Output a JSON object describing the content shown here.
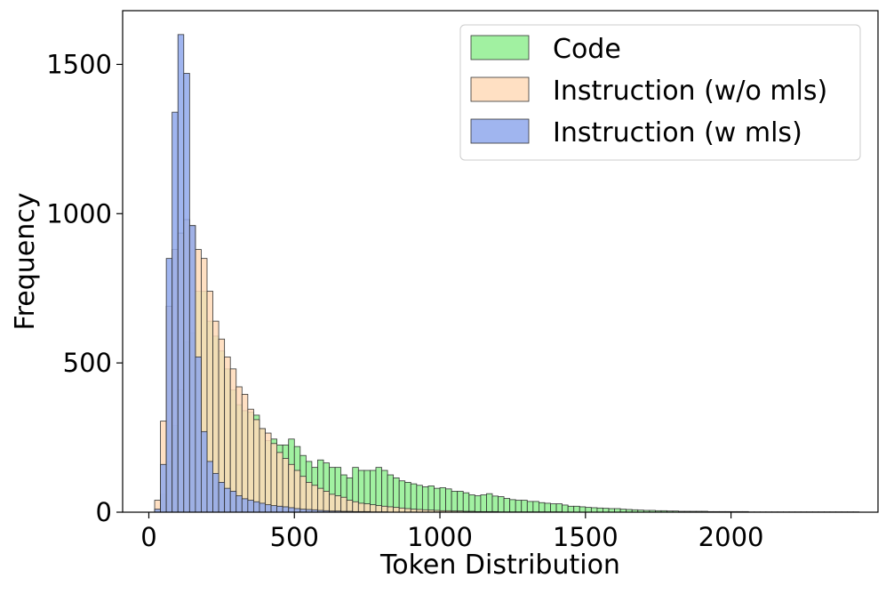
{
  "chart_data": {
    "type": "bar",
    "subtype": "histogram-overlay",
    "title": "",
    "xlabel": "Token Distribution",
    "ylabel": "Frequency",
    "xlim": [
      -90,
      2505
    ],
    "ylim": [
      0,
      1680
    ],
    "bin_width": 20,
    "x_ticks": [
      0,
      500,
      1000,
      1500,
      2000
    ],
    "y_ticks": [
      0,
      500,
      1000,
      1500
    ],
    "grid": false,
    "legend_position": "top-right",
    "series": [
      {
        "name": "Code",
        "color": "#90ee90",
        "edge_color": "#333333",
        "x_start": 20,
        "values": [
          8,
          60,
          170,
          290,
          410,
          570,
          600,
          740,
          740,
          640,
          590,
          540,
          480,
          410,
          360,
          340,
          335,
          325,
          280,
          240,
          245,
          225,
          225,
          245,
          220,
          190,
          170,
          150,
          175,
          165,
          150,
          150,
          125,
          115,
          150,
          140,
          140,
          140,
          150,
          140,
          125,
          115,
          105,
          100,
          95,
          90,
          85,
          88,
          80,
          82,
          78,
          70,
          70,
          65,
          58,
          55,
          58,
          62,
          54,
          52,
          46,
          42,
          40,
          40,
          36,
          36,
          32,
          30,
          28,
          28,
          24,
          20,
          20,
          18,
          16,
          15,
          14,
          13,
          12,
          12,
          10,
          9,
          8,
          7,
          6,
          6,
          5,
          5,
          4,
          4,
          3,
          3,
          3,
          3,
          3,
          2,
          2,
          2,
          2,
          2,
          2,
          2,
          1,
          1,
          1,
          1,
          1,
          1,
          1,
          1,
          1,
          1,
          1,
          1,
          1,
          1,
          1,
          1,
          1,
          1,
          1
        ]
      },
      {
        "name": "Instruction (w/o mls)",
        "color": "#ffdab9",
        "edge_color": "#333333",
        "x_start": 20,
        "values": [
          40,
          305,
          690,
          880,
          935,
          980,
          960,
          880,
          850,
          740,
          640,
          580,
          520,
          480,
          420,
          395,
          345,
          310,
          280,
          265,
          230,
          200,
          180,
          160,
          140,
          120,
          100,
          90,
          80,
          70,
          60,
          55,
          50,
          40,
          35,
          30,
          28,
          25,
          22,
          20,
          18,
          16,
          14,
          12,
          10,
          9,
          8,
          7,
          6,
          5,
          5,
          4,
          4,
          3,
          3,
          2,
          2,
          2,
          2,
          1,
          1,
          1,
          1,
          1,
          1,
          1,
          1,
          1,
          1,
          1
        ]
      },
      {
        "name": "Instruction (w mls)",
        "color": "#8fa8ec",
        "edge_color": "#333333",
        "x_start": 20,
        "values": [
          10,
          160,
          850,
          1340,
          1600,
          1470,
          960,
          520,
          270,
          170,
          130,
          100,
          80,
          70,
          55,
          45,
          40,
          35,
          30,
          25,
          22,
          20,
          18,
          15,
          12,
          10,
          9,
          8,
          6,
          5,
          4,
          4,
          3,
          3,
          2,
          2,
          2,
          1,
          1,
          1
        ]
      }
    ]
  }
}
